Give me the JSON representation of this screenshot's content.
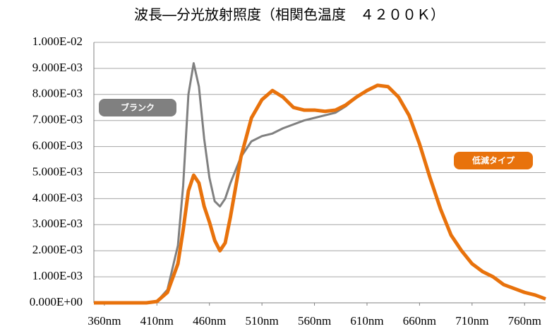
{
  "chart_data": {
    "type": "line",
    "title": "波長―分光放射照度（相関色温度　４２００Ｋ）",
    "x": [
      350,
      360,
      370,
      380,
      390,
      400,
      410,
      420,
      430,
      435,
      440,
      445,
      450,
      455,
      460,
      465,
      470,
      475,
      480,
      490,
      500,
      510,
      520,
      530,
      540,
      550,
      560,
      570,
      580,
      590,
      600,
      610,
      620,
      630,
      640,
      650,
      660,
      670,
      680,
      690,
      700,
      710,
      720,
      730,
      740,
      750,
      760,
      770,
      780
    ],
    "series": [
      {
        "name": "ブランク",
        "color": "#808080",
        "values": [
          0,
          0,
          0,
          0,
          0,
          0,
          5e-05,
          0.0005,
          0.0022,
          0.0045,
          0.008,
          0.0092,
          0.0083,
          0.0063,
          0.0048,
          0.0039,
          0.0037,
          0.004,
          0.0046,
          0.0056,
          0.0062,
          0.0064,
          0.0065,
          0.0067,
          0.00685,
          0.007,
          0.0071,
          0.0072,
          0.0073,
          0.00755,
          0.0079,
          0.00815,
          0.00835,
          0.0083,
          0.0079,
          0.0072,
          0.0061,
          0.0048,
          0.0036,
          0.0026,
          0.002,
          0.0015,
          0.0012,
          0.001,
          0.0007,
          0.00055,
          0.0004,
          0.0003,
          0.00015
        ]
      },
      {
        "name": "低減タイプ",
        "color": "#e8720c",
        "values": [
          0,
          0,
          0,
          0,
          0,
          0,
          5e-05,
          0.0004,
          0.0015,
          0.0028,
          0.0043,
          0.0049,
          0.0046,
          0.0037,
          0.0031,
          0.0024,
          0.002,
          0.0023,
          0.0033,
          0.0056,
          0.0071,
          0.0078,
          0.00815,
          0.0079,
          0.0075,
          0.0074,
          0.0074,
          0.00735,
          0.0074,
          0.0076,
          0.0079,
          0.00815,
          0.00835,
          0.0083,
          0.0079,
          0.0072,
          0.0061,
          0.0048,
          0.0036,
          0.0026,
          0.002,
          0.0015,
          0.0012,
          0.001,
          0.0007,
          0.00055,
          0.0004,
          0.0003,
          0.00015
        ]
      }
    ],
    "xlim": [
      350,
      780
    ],
    "xticks": [
      {
        "value": 360,
        "label": "360nm"
      },
      {
        "value": 410,
        "label": "410nm"
      },
      {
        "value": 460,
        "label": "460nm"
      },
      {
        "value": 510,
        "label": "510nm"
      },
      {
        "value": 560,
        "label": "560nm"
      },
      {
        "value": 610,
        "label": "610nm"
      },
      {
        "value": 660,
        "label": "660nm"
      },
      {
        "value": 710,
        "label": "710nm"
      },
      {
        "value": 760,
        "label": "760nm"
      }
    ],
    "ylim": [
      0,
      0.01
    ],
    "yticks": [
      {
        "value": 0,
        "label": "0.000E+00"
      },
      {
        "value": 0.001,
        "label": "1.000E-03"
      },
      {
        "value": 0.002,
        "label": "2.000E-03"
      },
      {
        "value": 0.003,
        "label": "3.000E-03"
      },
      {
        "value": 0.004,
        "label": "4.000E-03"
      },
      {
        "value": 0.005,
        "label": "5.000E-03"
      },
      {
        "value": 0.006,
        "label": "6.000E-03"
      },
      {
        "value": 0.007,
        "label": "7.000E-03"
      },
      {
        "value": 0.008,
        "label": "8.000E-03"
      },
      {
        "value": 0.009,
        "label": "9.000E-03"
      },
      {
        "value": 0.01,
        "label": "1.000E-02"
      }
    ],
    "grid": true
  }
}
